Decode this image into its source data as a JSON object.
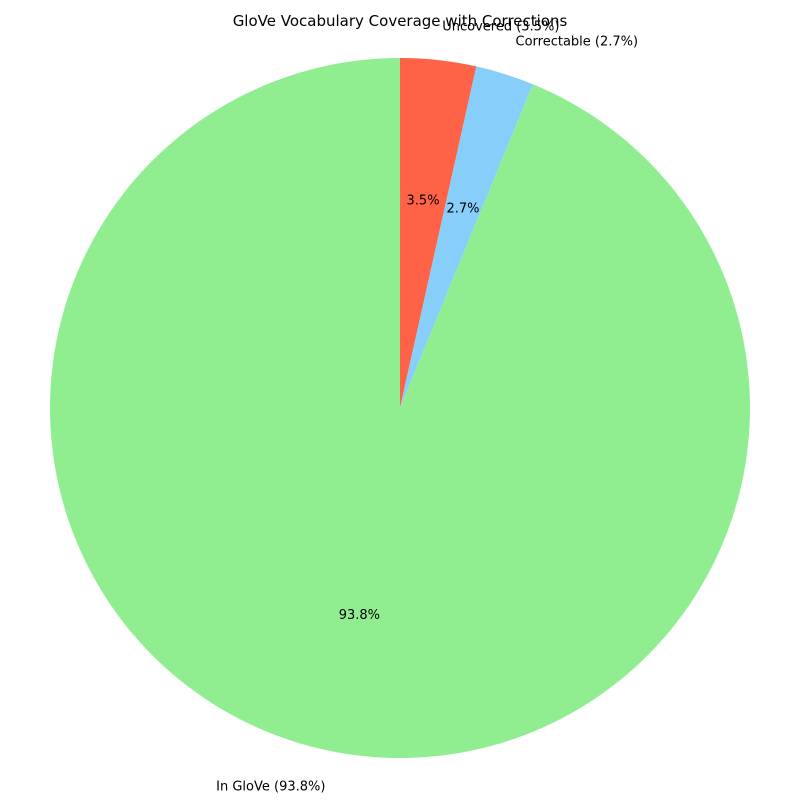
{
  "chart_data": {
    "type": "pie",
    "title": "GloVe Vocabulary Coverage with Corrections",
    "start_angle_deg": 90,
    "direction": "clockwise",
    "slices": [
      {
        "label": "Uncovered (3.5%)",
        "value": 3.5,
        "pct_label": "3.5%",
        "color": "#ff6347"
      },
      {
        "label": "Correctable (2.7%)",
        "value": 2.7,
        "pct_label": "2.7%",
        "color": "#87cefa"
      },
      {
        "label": "In GloVe (93.8%)",
        "value": 93.8,
        "pct_label": "93.8%",
        "color": "#90ee90"
      }
    ]
  }
}
